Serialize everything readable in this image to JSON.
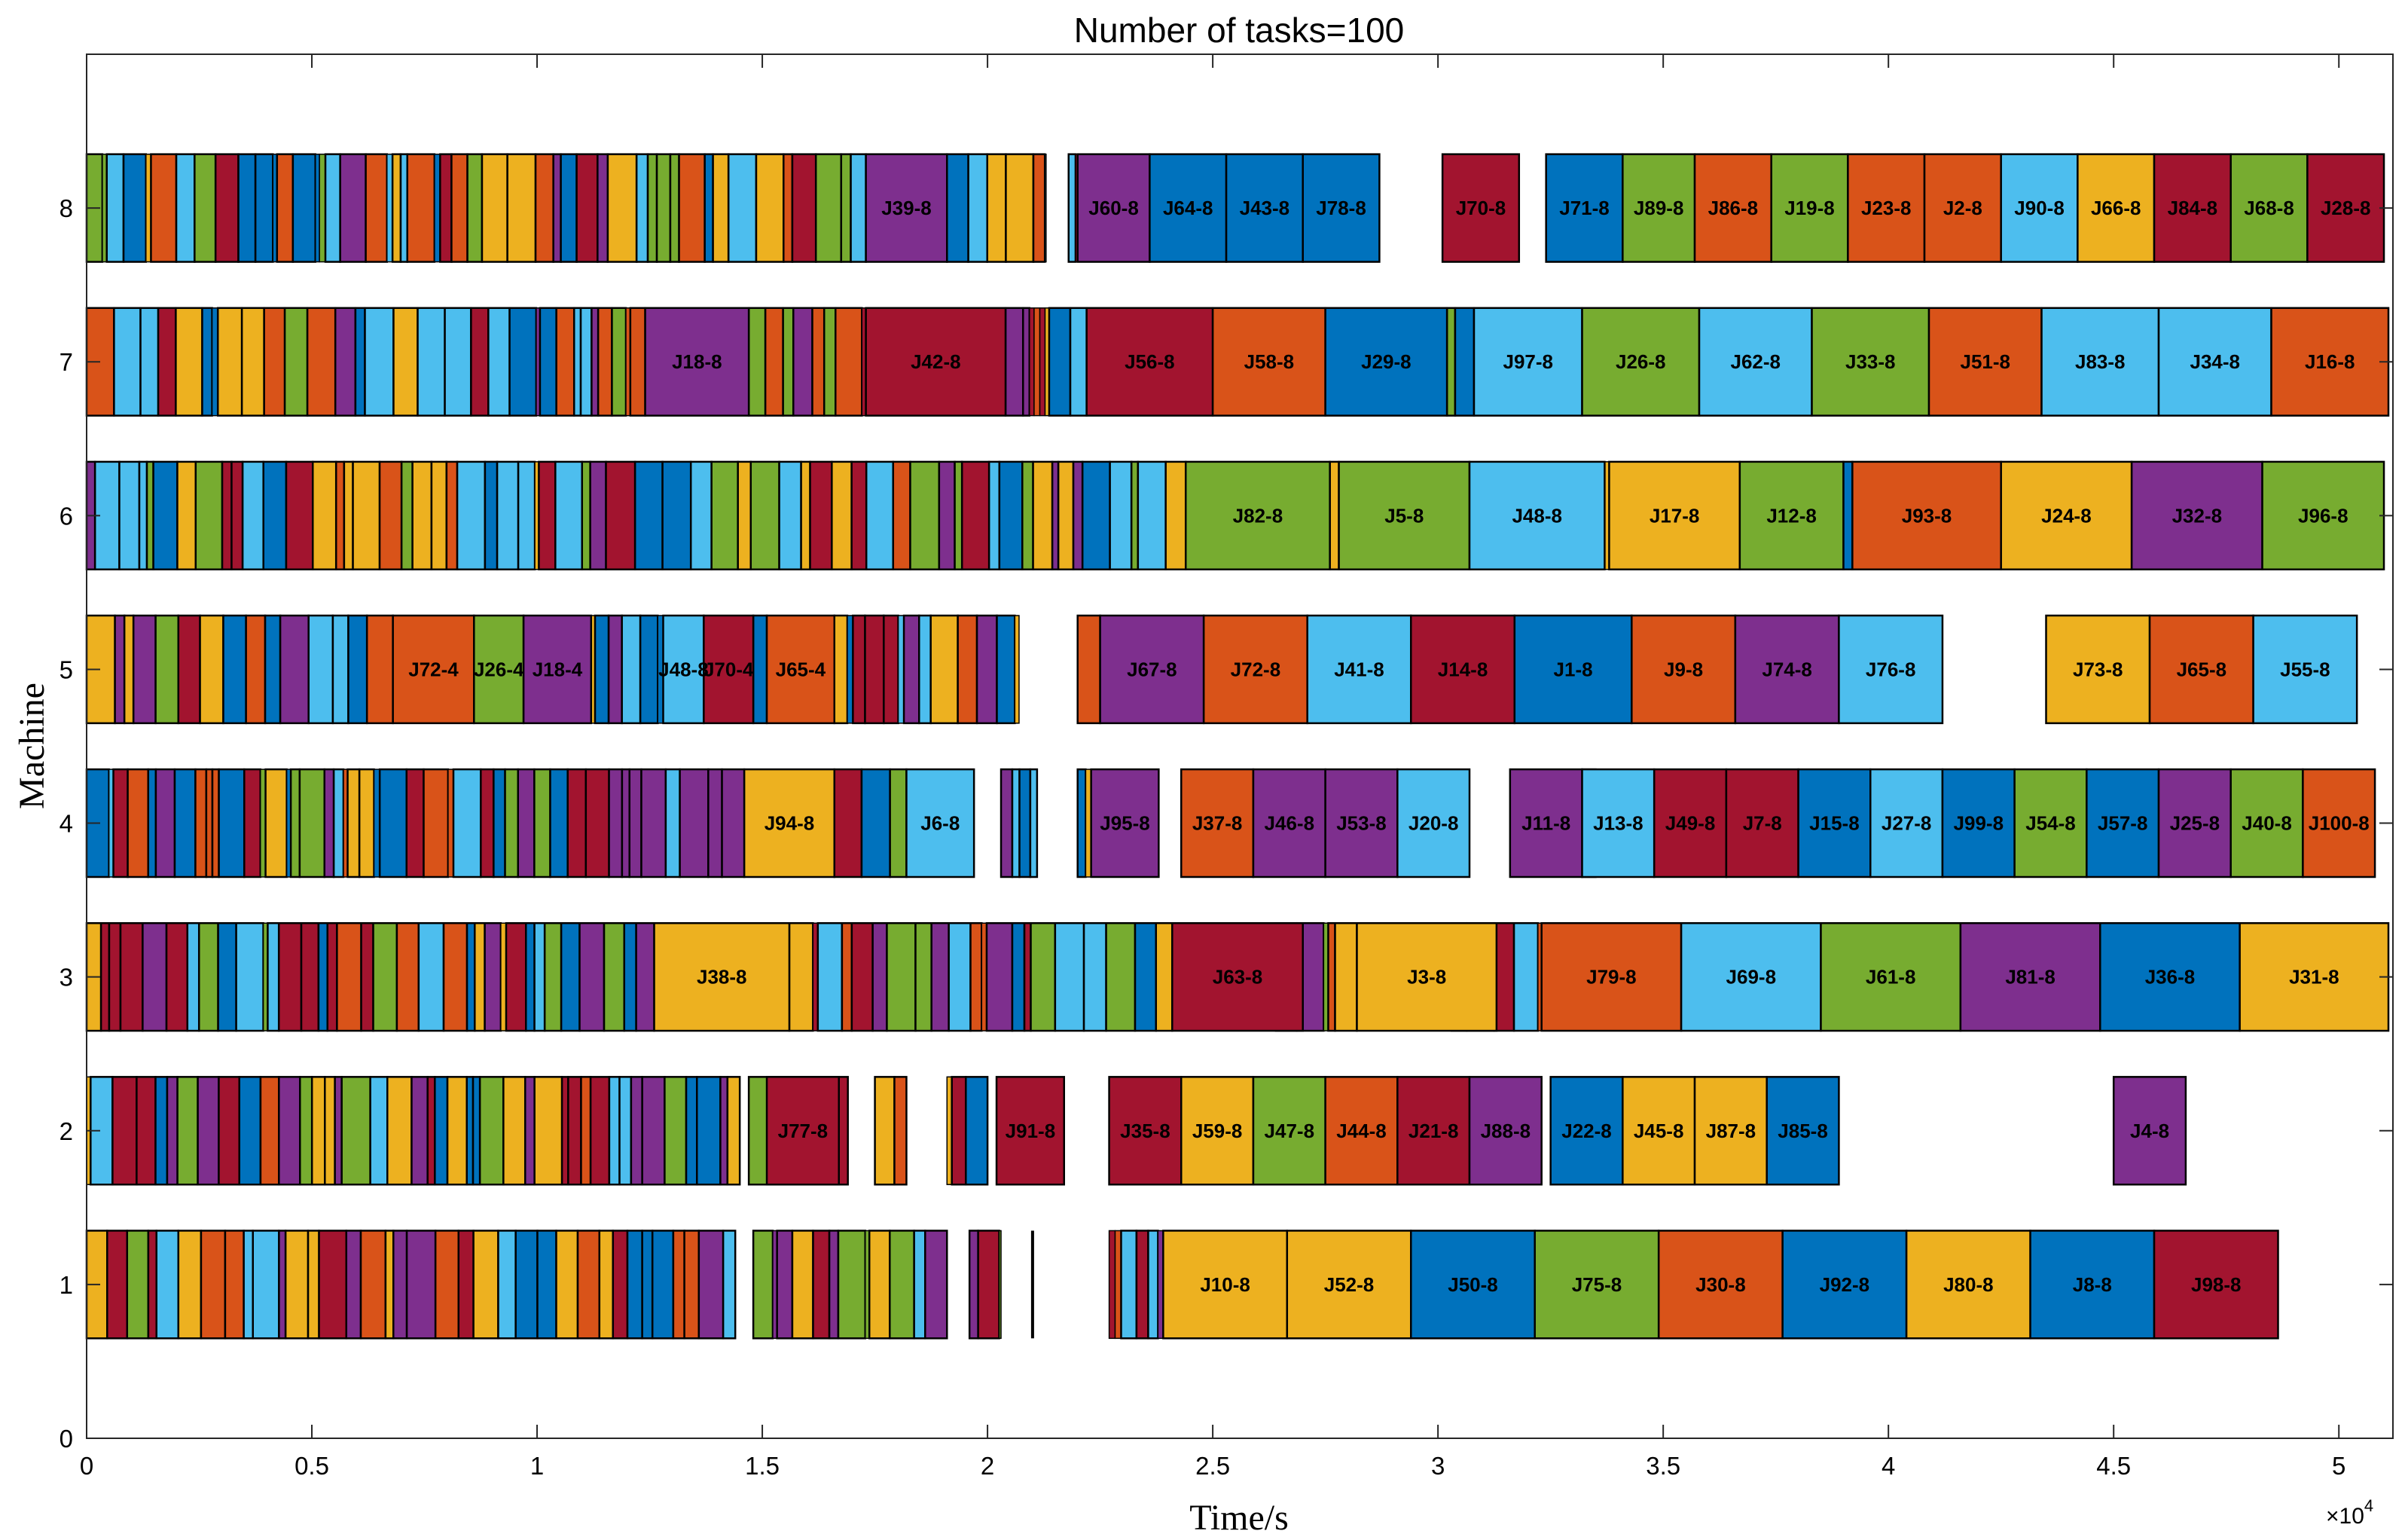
{
  "chart_data": {
    "type": "gantt",
    "title": "Number of tasks=100",
    "xlabel": "Time/s",
    "ylabel": "Machine",
    "x_exponent_label": "×10",
    "x_exponent_power": "4",
    "xlim": [
      0,
      51200
    ],
    "ylim": [
      0,
      9
    ],
    "x_ticks": [
      0,
      5000,
      10000,
      15000,
      20000,
      25000,
      30000,
      35000,
      40000,
      45000,
      50000
    ],
    "x_tick_labels": [
      "0",
      "0.5",
      "1",
      "1.5",
      "2",
      "2.5",
      "3",
      "3.5",
      "4",
      "4.5",
      "5"
    ],
    "y_ticks": [
      0,
      1,
      2,
      3,
      4,
      5,
      6,
      7,
      8
    ],
    "y_tick_labels": [
      "0",
      "1",
      "2",
      "3",
      "4",
      "5",
      "6",
      "7",
      "8"
    ],
    "bar_height": 0.7,
    "palette": [
      "#0072BD",
      "#D95319",
      "#EDB120",
      "#7E2F8E",
      "#77AC30",
      "#4DBEEE",
      "#A2142F"
    ],
    "machines": [
      {
        "machine": 1,
        "dense_segments": [
          [
            0,
            14400
          ],
          [
            14800,
            19100
          ],
          [
            19600,
            20300
          ],
          [
            21000,
            21000
          ],
          [
            22700,
            23900
          ]
        ],
        "tasks": [
          {
            "label": "J10-8",
            "start": 23900,
            "end": 26650,
            "color": "#EDB120"
          },
          {
            "label": "J52-8",
            "start": 26650,
            "end": 29400,
            "color": "#EDB120"
          },
          {
            "label": "J50-8",
            "start": 29400,
            "end": 32150,
            "color": "#0072BD"
          },
          {
            "label": "J75-8",
            "start": 32150,
            "end": 34900,
            "color": "#77AC30"
          },
          {
            "label": "J30-8",
            "start": 34900,
            "end": 37650,
            "color": "#D95319"
          },
          {
            "label": "J92-8",
            "start": 37650,
            "end": 40400,
            "color": "#0072BD"
          },
          {
            "label": "J80-8",
            "start": 40400,
            "end": 43150,
            "color": "#EDB120"
          },
          {
            "label": "J8-8",
            "start": 43150,
            "end": 45900,
            "color": "#0072BD"
          },
          {
            "label": "J98-8",
            "start": 45900,
            "end": 48650,
            "color": "#A2142F"
          }
        ]
      },
      {
        "machine": 2,
        "dense_segments": [
          [
            0,
            14500
          ],
          [
            14700,
            16900
          ],
          [
            17500,
            18200
          ],
          [
            19100,
            20000
          ]
        ],
        "tasks": [
          {
            "label": "J77-8",
            "start": 15100,
            "end": 16700,
            "color": "#A2142F"
          },
          {
            "label": "J91-8",
            "start": 20200,
            "end": 21700,
            "color": "#A2142F"
          },
          {
            "label": "J35-8",
            "start": 22700,
            "end": 24300,
            "color": "#A2142F"
          },
          {
            "label": "J59-8",
            "start": 24300,
            "end": 25900,
            "color": "#EDB120"
          },
          {
            "label": "J47-8",
            "start": 25900,
            "end": 27500,
            "color": "#77AC30"
          },
          {
            "label": "J44-8",
            "start": 27500,
            "end": 29100,
            "color": "#D95319"
          },
          {
            "label": "J21-8",
            "start": 29100,
            "end": 30700,
            "color": "#A2142F"
          },
          {
            "label": "J88-8",
            "start": 30700,
            "end": 32300,
            "color": "#7E2F8E"
          },
          {
            "label": "J22-8",
            "start": 32500,
            "end": 34100,
            "color": "#0072BD"
          },
          {
            "label": "J45-8",
            "start": 34100,
            "end": 35700,
            "color": "#EDB120"
          },
          {
            "label": "J87-8",
            "start": 35700,
            "end": 37300,
            "color": "#EDB120"
          },
          {
            "label": "J85-8",
            "start": 37300,
            "end": 38900,
            "color": "#0072BD"
          },
          {
            "label": "J4-8",
            "start": 45000,
            "end": 46600,
            "color": "#7E2F8E"
          }
        ]
      },
      {
        "machine": 3,
        "dense_segments": [
          [
            0,
            12600
          ],
          [
            15600,
            24100
          ],
          [
            26400,
            28200
          ],
          [
            30300,
            32300
          ]
        ],
        "tasks": [
          {
            "label": "J38-8",
            "start": 12600,
            "end": 15600,
            "color": "#EDB120"
          },
          {
            "label": "J63-8",
            "start": 24100,
            "end": 27000,
            "color": "#A2142F"
          },
          {
            "label": "J3-8",
            "start": 28200,
            "end": 31300,
            "color": "#EDB120"
          },
          {
            "label": "J79-8",
            "start": 32300,
            "end": 35400,
            "color": "#D95319"
          },
          {
            "label": "J69-8",
            "start": 35400,
            "end": 38500,
            "color": "#4DBEEE"
          },
          {
            "label": "J61-8",
            "start": 38500,
            "end": 41600,
            "color": "#77AC30"
          },
          {
            "label": "J81-8",
            "start": 41600,
            "end": 44700,
            "color": "#7E2F8E"
          },
          {
            "label": "J36-8",
            "start": 44700,
            "end": 47800,
            "color": "#0072BD"
          },
          {
            "label": "J31-8",
            "start": 47800,
            "end": 51100,
            "color": "#EDB120"
          }
        ]
      },
      {
        "machine": 4,
        "dense_segments": [
          [
            0,
            14600
          ],
          [
            16600,
            18200
          ],
          [
            20300,
            21100
          ],
          [
            22000,
            22300
          ],
          [
            33200,
            33500
          ]
        ],
        "tasks": [
          {
            "label": "J94-8",
            "start": 14600,
            "end": 16600,
            "color": "#EDB120"
          },
          {
            "label": "J6-8",
            "start": 18200,
            "end": 19700,
            "color": "#4DBEEE"
          },
          {
            "label": "J95-8",
            "start": 22300,
            "end": 23800,
            "color": "#7E2F8E"
          },
          {
            "label": "J37-8",
            "start": 24300,
            "end": 25900,
            "color": "#D95319"
          },
          {
            "label": "J46-8",
            "start": 25900,
            "end": 27500,
            "color": "#7E2F8E"
          },
          {
            "label": "J53-8",
            "start": 27500,
            "end": 29100,
            "color": "#7E2F8E"
          },
          {
            "label": "J20-8",
            "start": 29100,
            "end": 30700,
            "color": "#4DBEEE"
          },
          {
            "label": "J11-8",
            "start": 31600,
            "end": 33200,
            "color": "#7E2F8E"
          },
          {
            "label": "J13-8",
            "start": 33200,
            "end": 34800,
            "color": "#4DBEEE"
          },
          {
            "label": "J49-8",
            "start": 34800,
            "end": 36400,
            "color": "#A2142F"
          },
          {
            "label": "J7-8",
            "start": 36400,
            "end": 38000,
            "color": "#A2142F"
          },
          {
            "label": "J15-8",
            "start": 38000,
            "end": 39600,
            "color": "#0072BD"
          },
          {
            "label": "J27-8",
            "start": 39600,
            "end": 41200,
            "color": "#4DBEEE"
          },
          {
            "label": "J99-8",
            "start": 41200,
            "end": 42800,
            "color": "#0072BD"
          },
          {
            "label": "J54-8",
            "start": 42800,
            "end": 44400,
            "color": "#77AC30"
          },
          {
            "label": "J57-8",
            "start": 44400,
            "end": 46000,
            "color": "#0072BD"
          },
          {
            "label": "J25-8",
            "start": 46000,
            "end": 47600,
            "color": "#7E2F8E"
          },
          {
            "label": "J40-8",
            "start": 47600,
            "end": 49200,
            "color": "#77AC30"
          },
          {
            "label": "J100-8",
            "start": 49200,
            "end": 50800,
            "color": "#D95319"
          }
        ]
      },
      {
        "machine": 5,
        "dense_segments": [
          [
            0,
            6800
          ],
          [
            9700,
            9700
          ],
          [
            11200,
            12800
          ],
          [
            14800,
            15100
          ],
          [
            16600,
            20700
          ],
          [
            22000,
            22500
          ]
        ],
        "tasks": [
          {
            "label": "J72-4",
            "start": 6800,
            "end": 8600,
            "color": "#D95319"
          },
          {
            "label": "J26-4",
            "start": 8600,
            "end": 9700,
            "color": "#77AC30"
          },
          {
            "label": "J18-4",
            "start": 9700,
            "end": 11200,
            "color": "#7E2F8E"
          },
          {
            "label": "J48-8",
            "start": 12800,
            "end": 13700,
            "color": "#4DBEEE"
          },
          {
            "label": "J70-4",
            "start": 13700,
            "end": 14800,
            "color": "#A2142F"
          },
          {
            "label": "J65-4",
            "start": 15100,
            "end": 16600,
            "color": "#D95319"
          },
          {
            "label": "J67-8",
            "start": 22500,
            "end": 24800,
            "color": "#7E2F8E"
          },
          {
            "label": "J72-8",
            "start": 24800,
            "end": 27100,
            "color": "#D95319"
          },
          {
            "label": "J41-8",
            "start": 27100,
            "end": 29400,
            "color": "#4DBEEE"
          },
          {
            "label": "J14-8",
            "start": 29400,
            "end": 31700,
            "color": "#A2142F"
          },
          {
            "label": "J1-8",
            "start": 31700,
            "end": 34300,
            "color": "#0072BD"
          },
          {
            "label": "J9-8",
            "start": 34300,
            "end": 36600,
            "color": "#D95319"
          },
          {
            "label": "J74-8",
            "start": 36600,
            "end": 38900,
            "color": "#7E2F8E"
          },
          {
            "label": "J76-8",
            "start": 38900,
            "end": 41200,
            "color": "#4DBEEE"
          },
          {
            "label": "J73-8",
            "start": 43500,
            "end": 45800,
            "color": "#EDB120"
          },
          {
            "label": "J65-8",
            "start": 45800,
            "end": 48100,
            "color": "#D95319"
          },
          {
            "label": "J55-8",
            "start": 48100,
            "end": 50400,
            "color": "#4DBEEE"
          }
        ]
      },
      {
        "machine": 6,
        "dense_segments": [
          [
            0,
            24400
          ],
          [
            27600,
            27800
          ],
          [
            33700,
            33800
          ],
          [
            39000,
            39200
          ]
        ],
        "tasks": [
          {
            "label": "J82-8",
            "start": 24400,
            "end": 27600,
            "color": "#77AC30"
          },
          {
            "label": "J5-8",
            "start": 27800,
            "end": 30700,
            "color": "#77AC30"
          },
          {
            "label": "J48-8",
            "start": 30700,
            "end": 33700,
            "color": "#4DBEEE"
          },
          {
            "label": "J17-8",
            "start": 33800,
            "end": 36700,
            "color": "#EDB120"
          },
          {
            "label": "J12-8",
            "start": 36700,
            "end": 39000,
            "color": "#77AC30"
          },
          {
            "label": "J93-8",
            "start": 39200,
            "end": 42500,
            "color": "#D95319"
          },
          {
            "label": "J24-8",
            "start": 42500,
            "end": 45400,
            "color": "#EDB120"
          },
          {
            "label": "J32-8",
            "start": 45400,
            "end": 48300,
            "color": "#7E2F8E"
          },
          {
            "label": "J96-8",
            "start": 48300,
            "end": 51000,
            "color": "#77AC30"
          }
        ]
      },
      {
        "machine": 7,
        "dense_segments": [
          [
            0,
            12400
          ],
          [
            14700,
            17300
          ],
          [
            20400,
            22200
          ],
          [
            30200,
            30800
          ]
        ],
        "tasks": [
          {
            "label": "J18-8",
            "start": 12400,
            "end": 14700,
            "color": "#7E2F8E"
          },
          {
            "label": "J42-8",
            "start": 17300,
            "end": 20400,
            "color": "#A2142F"
          },
          {
            "label": "J56-8",
            "start": 22200,
            "end": 25000,
            "color": "#A2142F"
          },
          {
            "label": "J58-8",
            "start": 25000,
            "end": 27500,
            "color": "#D95319"
          },
          {
            "label": "J29-8",
            "start": 27500,
            "end": 30200,
            "color": "#0072BD"
          },
          {
            "label": "J97-8",
            "start": 30800,
            "end": 33200,
            "color": "#4DBEEE"
          },
          {
            "label": "J26-8",
            "start": 33200,
            "end": 35800,
            "color": "#77AC30"
          },
          {
            "label": "J62-8",
            "start": 35800,
            "end": 38300,
            "color": "#4DBEEE"
          },
          {
            "label": "J33-8",
            "start": 38300,
            "end": 40900,
            "color": "#77AC30"
          },
          {
            "label": "J51-8",
            "start": 40900,
            "end": 43400,
            "color": "#D95319"
          },
          {
            "label": "J83-8",
            "start": 43400,
            "end": 46000,
            "color": "#4DBEEE"
          },
          {
            "label": "J34-8",
            "start": 46000,
            "end": 48500,
            "color": "#4DBEEE"
          },
          {
            "label": "J16-8",
            "start": 48500,
            "end": 51100,
            "color": "#D95319"
          }
        ]
      },
      {
        "machine": 8,
        "dense_segments": [
          [
            0,
            17300
          ],
          [
            19100,
            21300
          ],
          [
            21800,
            22000
          ]
        ],
        "tasks": [
          {
            "label": "J39-8",
            "start": 17300,
            "end": 19100,
            "color": "#7E2F8E"
          },
          {
            "label": "J60-8",
            "start": 22000,
            "end": 23600,
            "color": "#7E2F8E"
          },
          {
            "label": "J64-8",
            "start": 23600,
            "end": 25300,
            "color": "#0072BD"
          },
          {
            "label": "J43-8",
            "start": 25300,
            "end": 27000,
            "color": "#0072BD"
          },
          {
            "label": "J78-8",
            "start": 27000,
            "end": 28700,
            "color": "#0072BD"
          },
          {
            "label": "J70-8",
            "start": 30100,
            "end": 31800,
            "color": "#A2142F"
          },
          {
            "label": "J71-8",
            "start": 32400,
            "end": 34100,
            "color": "#0072BD"
          },
          {
            "label": "J89-8",
            "start": 34100,
            "end": 35700,
            "color": "#77AC30"
          },
          {
            "label": "J86-8",
            "start": 35700,
            "end": 37400,
            "color": "#D95319"
          },
          {
            "label": "J19-8",
            "start": 37400,
            "end": 39100,
            "color": "#77AC30"
          },
          {
            "label": "J23-8",
            "start": 39100,
            "end": 40800,
            "color": "#D95319"
          },
          {
            "label": "J2-8",
            "start": 40800,
            "end": 42500,
            "color": "#D95319"
          },
          {
            "label": "J90-8",
            "start": 42500,
            "end": 44200,
            "color": "#4DBEEE"
          },
          {
            "label": "J66-8",
            "start": 44200,
            "end": 45900,
            "color": "#EDB120"
          },
          {
            "label": "J84-8",
            "start": 45900,
            "end": 47600,
            "color": "#A2142F"
          },
          {
            "label": "J68-8",
            "start": 47600,
            "end": 49300,
            "color": "#77AC30"
          },
          {
            "label": "J28-8",
            "start": 49300,
            "end": 51000,
            "color": "#A2142F"
          }
        ]
      }
    ]
  }
}
